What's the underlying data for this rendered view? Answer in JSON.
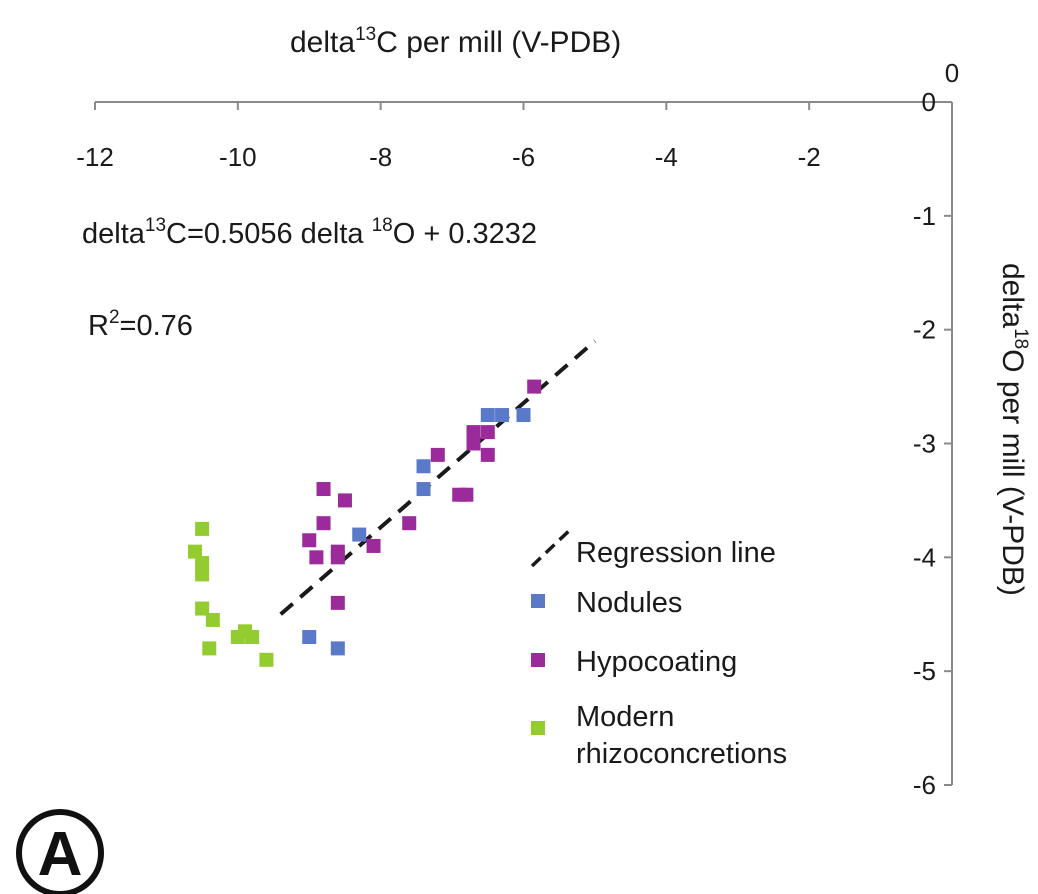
{
  "chart_data": {
    "type": "scatter",
    "x_axis": {
      "title": "delta",
      "title_sup": "13",
      "title_rest": "C per mill (V-PDB)",
      "position": "top",
      "range": [
        -12,
        0
      ],
      "ticks": [
        -12,
        -10,
        -8,
        -6,
        -4,
        -2
      ],
      "tick_labels": [
        "-12",
        "-10",
        "-8",
        "-6",
        "-4",
        "-2"
      ],
      "end_label": "0"
    },
    "y_axis": {
      "title": "delta",
      "title_sup": "18",
      "title_rest": "O per mill (V-PDB)",
      "position": "right",
      "range": [
        -6,
        0
      ],
      "ticks": [
        0,
        -1,
        -2,
        -3,
        -4,
        -5,
        -6
      ],
      "tick_labels": [
        "0",
        "-1",
        "-2",
        "-3",
        "-4",
        "-5",
        "-6"
      ]
    },
    "equation": {
      "part1": "delta",
      "sup1": "13",
      "part2": "C=0.5056 delta ",
      "sup2": "18",
      "part3": "O + 0.3232"
    },
    "r_squared": {
      "prefix": "R",
      "sup": "2",
      "rest": "=0.76"
    },
    "regression_line": {
      "name": "Regression line",
      "from": [
        -9.4,
        -4.5
      ],
      "to": [
        -5.0,
        -2.1
      ]
    },
    "series": [
      {
        "name": "Nodules",
        "color": "#5b79c9",
        "points": [
          [
            -8.3,
            -3.8
          ],
          [
            -7.4,
            -3.4
          ],
          [
            -7.4,
            -3.2
          ],
          [
            -6.5,
            -2.75
          ],
          [
            -6.3,
            -2.75
          ],
          [
            -6.0,
            -2.75
          ],
          [
            -9.0,
            -4.7
          ],
          [
            -8.6,
            -4.8
          ]
        ]
      },
      {
        "name": "Hypocoating",
        "color": "#9b2a9b",
        "points": [
          [
            -5.85,
            -2.5
          ],
          [
            -6.7,
            -2.9
          ],
          [
            -6.7,
            -3.0
          ],
          [
            -6.5,
            -2.9
          ],
          [
            -6.5,
            -3.1
          ],
          [
            -7.2,
            -3.1
          ],
          [
            -6.9,
            -3.45
          ],
          [
            -6.8,
            -3.45
          ],
          [
            -7.6,
            -3.7
          ],
          [
            -8.1,
            -3.9
          ],
          [
            -8.5,
            -3.5
          ],
          [
            -8.8,
            -3.4
          ],
          [
            -8.8,
            -3.7
          ],
          [
            -9.0,
            -3.85
          ],
          [
            -8.9,
            -4.0
          ],
          [
            -8.6,
            -3.95
          ],
          [
            -8.6,
            -4.0
          ],
          [
            -8.6,
            -4.4
          ]
        ]
      },
      {
        "name": "Modern rhizoconcretions",
        "name_line1": "Modern",
        "name_line2": "rhizoconcretions",
        "color": "#93cc2e",
        "points": [
          [
            -10.5,
            -3.75
          ],
          [
            -10.6,
            -3.95
          ],
          [
            -10.5,
            -4.05
          ],
          [
            -10.5,
            -4.15
          ],
          [
            -10.5,
            -4.45
          ],
          [
            -10.35,
            -4.55
          ],
          [
            -10.4,
            -4.8
          ],
          [
            -10.0,
            -4.7
          ],
          [
            -9.9,
            -4.65
          ],
          [
            -9.8,
            -4.7
          ],
          [
            -9.6,
            -4.9
          ]
        ]
      }
    ],
    "legend_placement": "bottom-right",
    "grid": false
  },
  "panel_label": "A"
}
